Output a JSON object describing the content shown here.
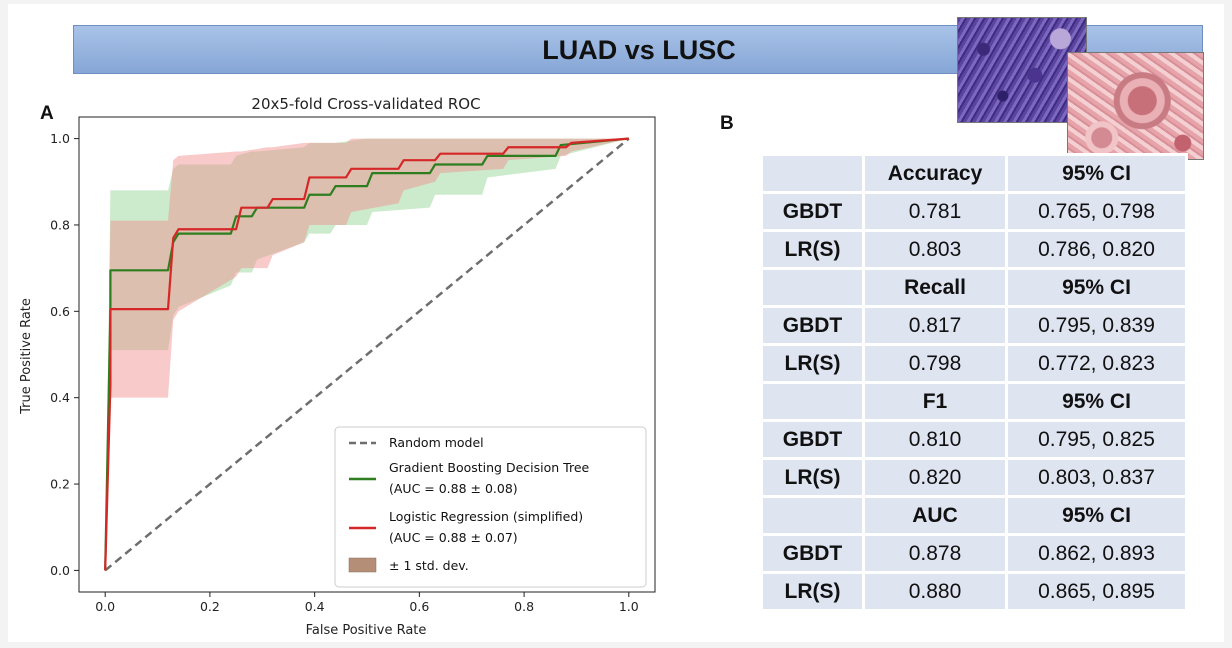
{
  "banner": {
    "title": "LUAD vs LUSC"
  },
  "panels": {
    "a_label": "A",
    "b_label": "B"
  },
  "colors": {
    "gbdt": "#2e7d1e",
    "lr": "#d62728",
    "random": "#6e6e6e",
    "gbdt_band": "#8fd28f",
    "lr_band": "#f08a8a",
    "std_band": "#b58e78"
  },
  "chart_data": {
    "type": "line",
    "title": "20x5-fold Cross-validated ROC",
    "xlabel": "False Positive Rate",
    "ylabel": "True Positive Rate",
    "xlim": [
      -0.05,
      1.05
    ],
    "ylim": [
      -0.05,
      1.05
    ],
    "xticks": [
      "0.0",
      "0.2",
      "0.4",
      "0.6",
      "0.8",
      "1.0"
    ],
    "yticks": [
      "0.0",
      "0.2",
      "0.4",
      "0.6",
      "0.8",
      "1.0"
    ],
    "xtick_values": [
      0,
      0.2,
      0.4,
      0.6,
      0.8,
      1.0
    ],
    "ytick_values": [
      0,
      0.2,
      0.4,
      0.6,
      0.8,
      1.0
    ],
    "legend_position": "lower-right",
    "series": [
      {
        "name": "Random model",
        "legend": "Random model",
        "style": "dashed",
        "x": [
          0,
          1
        ],
        "y": [
          0,
          1
        ]
      },
      {
        "name": "Gradient Boosting Decision Tree",
        "legend": "Gradient Boosting Decision Tree",
        "legend_sub": "(AUC = 0.88 ± 0.08)",
        "x": [
          0,
          0.01,
          0.01,
          0.12,
          0.13,
          0.14,
          0.24,
          0.25,
          0.28,
          0.29,
          0.38,
          0.39,
          0.43,
          0.44,
          0.5,
          0.51,
          0.62,
          0.63,
          0.72,
          0.73,
          0.86,
          0.87,
          1.0
        ],
        "y": [
          0,
          0.61,
          0.695,
          0.695,
          0.76,
          0.78,
          0.78,
          0.82,
          0.82,
          0.84,
          0.84,
          0.87,
          0.87,
          0.89,
          0.89,
          0.92,
          0.92,
          0.94,
          0.94,
          0.96,
          0.96,
          0.985,
          1.0
        ],
        "band_upper": [
          0,
          0.88,
          0.88,
          0.88,
          0.93,
          0.94,
          0.94,
          0.96,
          0.97,
          0.97,
          0.98,
          0.99,
          0.99,
          0.99,
          1.0,
          1.0,
          1.0,
          1.0,
          1.0,
          1.0,
          1.0,
          1.0,
          1.0
        ],
        "band_lower": [
          0,
          0.51,
          0.51,
          0.51,
          0.59,
          0.61,
          0.66,
          0.69,
          0.69,
          0.72,
          0.76,
          0.78,
          0.78,
          0.8,
          0.8,
          0.83,
          0.84,
          0.87,
          0.87,
          0.91,
          0.93,
          0.96,
          1.0
        ]
      },
      {
        "name": "Logistic Regression (simplified)",
        "legend": "Logistic Regression (simplified)",
        "legend_sub": "(AUC = 0.88 ± 0.07)",
        "x": [
          0,
          0.01,
          0.01,
          0.12,
          0.13,
          0.14,
          0.25,
          0.26,
          0.31,
          0.32,
          0.38,
          0.39,
          0.46,
          0.47,
          0.56,
          0.57,
          0.63,
          0.64,
          0.76,
          0.77,
          0.88,
          0.89,
          1.0
        ],
        "y": [
          0,
          0.43,
          0.605,
          0.605,
          0.77,
          0.79,
          0.79,
          0.84,
          0.84,
          0.86,
          0.86,
          0.91,
          0.91,
          0.93,
          0.93,
          0.95,
          0.95,
          0.965,
          0.965,
          0.98,
          0.98,
          0.99,
          1.0
        ],
        "band_upper": [
          0,
          0.81,
          0.81,
          0.81,
          0.95,
          0.96,
          0.97,
          0.97,
          0.98,
          0.98,
          0.99,
          0.99,
          0.99,
          1.0,
          1.0,
          1.0,
          1.0,
          1.0,
          1.0,
          1.0,
          1.0,
          1.0,
          1.0
        ],
        "band_lower": [
          0,
          0.4,
          0.4,
          0.4,
          0.58,
          0.6,
          0.68,
          0.7,
          0.7,
          0.73,
          0.76,
          0.8,
          0.8,
          0.83,
          0.85,
          0.88,
          0.9,
          0.92,
          0.93,
          0.95,
          0.96,
          0.97,
          1.0
        ]
      }
    ],
    "band_legend": "± 1 std. dev."
  },
  "table": {
    "sections": [
      {
        "metric": "Accuracy",
        "ci_header": "95% CI",
        "rows": [
          {
            "model": "GBDT",
            "value": "0.781",
            "ci": "0.765, 0.798"
          },
          {
            "model": "LR(S)",
            "value": "0.803",
            "ci": "0.786, 0.820"
          }
        ]
      },
      {
        "metric": "Recall",
        "ci_header": "95% CI",
        "rows": [
          {
            "model": "GBDT",
            "value": "0.817",
            "ci": "0.795, 0.839"
          },
          {
            "model": "LR(S)",
            "value": "0.798",
            "ci": "0.772, 0.823"
          }
        ]
      },
      {
        "metric": "F1",
        "ci_header": "95% CI",
        "rows": [
          {
            "model": "GBDT",
            "value": "0.810",
            "ci": "0.795, 0.825"
          },
          {
            "model": "LR(S)",
            "value": "0.820",
            "ci": "0.803, 0.837"
          }
        ]
      },
      {
        "metric": "AUC",
        "ci_header": "95% CI",
        "rows": [
          {
            "model": "GBDT",
            "value": "0.878",
            "ci": "0.862, 0.893"
          },
          {
            "model": "LR(S)",
            "value": "0.880",
            "ci": "0.865, 0.895"
          }
        ]
      }
    ]
  }
}
